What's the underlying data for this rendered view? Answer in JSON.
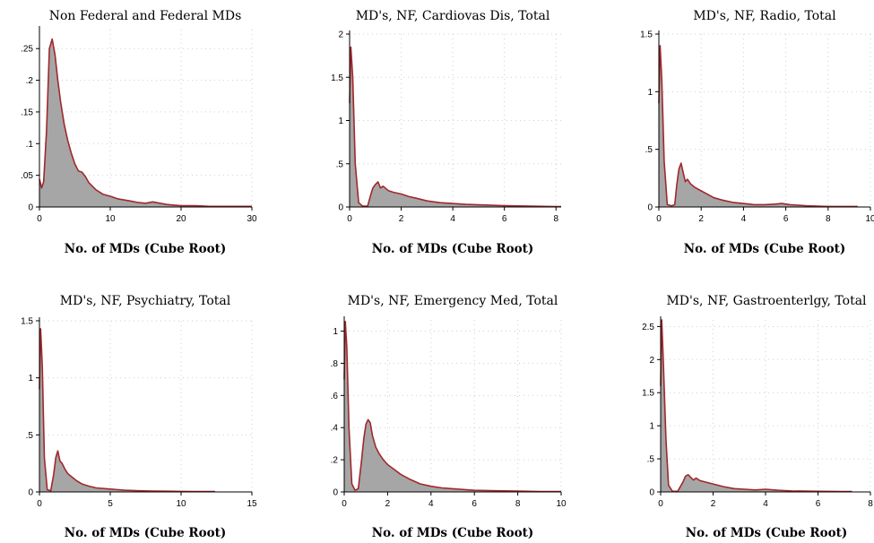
{
  "colors": {
    "fill": "#a6a6a6",
    "line": "#a0282c",
    "grid": "#cfcfcf"
  },
  "chart_data": [
    {
      "type": "area",
      "title": "Non Federal and Federal MDs",
      "xlabel": "No. of MDs (Cube Root)",
      "ylabel": "",
      "xlim": [
        0,
        30
      ],
      "ylim": [
        0,
        0.28
      ],
      "xticks": [
        0,
        10,
        20,
        30
      ],
      "xtick_labels": [
        "0",
        "10",
        "20",
        "30"
      ],
      "yticks": [
        0,
        0.05,
        0.1,
        0.15,
        0.2,
        0.25
      ],
      "ytick_labels": [
        "0",
        ".05",
        ".1",
        ".15",
        ".2",
        ".25"
      ],
      "grid": true,
      "x": [
        0,
        0.3,
        0.6,
        1.0,
        1.4,
        1.8,
        2.2,
        2.6,
        3.0,
        3.5,
        4.0,
        4.5,
        5.0,
        5.5,
        6.0,
        6.5,
        7.0,
        8.0,
        9.0,
        10.0,
        11.0,
        12.0,
        13.0,
        14.0,
        15.0,
        16.0,
        17.0,
        18.0,
        19.0,
        20.0,
        21.0,
        22.0,
        24.0,
        26.0,
        28.0,
        30.0
      ],
      "y": [
        0.044,
        0.03,
        0.04,
        0.12,
        0.25,
        0.265,
        0.24,
        0.2,
        0.165,
        0.13,
        0.105,
        0.085,
        0.068,
        0.057,
        0.055,
        0.048,
        0.038,
        0.027,
        0.02,
        0.017,
        0.013,
        0.011,
        0.009,
        0.007,
        0.006,
        0.008,
        0.006,
        0.004,
        0.003,
        0.002,
        0.002,
        0.002,
        0.001,
        0.001,
        0.001,
        0.001
      ]
    },
    {
      "type": "area",
      "title": "MD's, NF, Cardiovas Dis, Total",
      "xlabel": "No. of MDs (Cube Root)",
      "ylabel": "",
      "xlim": [
        0,
        8.2
      ],
      "ylim": [
        0,
        2
      ],
      "xticks": [
        0,
        2,
        4,
        6,
        8
      ],
      "xtick_labels": [
        "0",
        "2",
        "4",
        "6",
        "8"
      ],
      "yticks": [
        0,
        0.5,
        1,
        1.5,
        2
      ],
      "ytick_labels": [
        "0",
        ".5",
        "1",
        "1.5",
        "2"
      ],
      "grid": true,
      "x": [
        0,
        0.05,
        0.12,
        0.22,
        0.35,
        0.5,
        0.7,
        0.8,
        0.9,
        1.0,
        1.1,
        1.2,
        1.3,
        1.5,
        1.7,
        2.0,
        2.3,
        2.6,
        3.0,
        3.5,
        4.0,
        4.5,
        5.0,
        5.5,
        6.0,
        7.0,
        8.0,
        8.2
      ],
      "y": [
        1.2,
        1.85,
        1.5,
        0.5,
        0.05,
        0.01,
        0.01,
        0.12,
        0.22,
        0.26,
        0.29,
        0.22,
        0.24,
        0.19,
        0.17,
        0.15,
        0.12,
        0.1,
        0.07,
        0.05,
        0.04,
        0.03,
        0.025,
        0.02,
        0.015,
        0.01,
        0.005,
        0.005
      ]
    },
    {
      "type": "area",
      "title": "MD's, NF, Radio, Total",
      "xlabel": "No. of MDs (Cube Root)",
      "ylabel": "",
      "xlim": [
        0,
        10
      ],
      "ylim": [
        0,
        1.5
      ],
      "xticks": [
        0,
        2,
        4,
        6,
        8,
        10
      ],
      "xtick_labels": [
        "0",
        "2",
        "4",
        "6",
        "8",
        "10"
      ],
      "yticks": [
        0,
        0.5,
        1,
        1.5
      ],
      "ytick_labels": [
        "0",
        ".5",
        "1",
        "1.5"
      ],
      "grid": true,
      "x": [
        0,
        0.06,
        0.14,
        0.25,
        0.4,
        0.6,
        0.75,
        0.85,
        0.95,
        1.05,
        1.15,
        1.25,
        1.35,
        1.5,
        1.7,
        2.0,
        2.3,
        2.6,
        3.0,
        3.5,
        4.0,
        4.5,
        5.0,
        5.5,
        5.8,
        6.2,
        7.0,
        8.0,
        9.0,
        9.4
      ],
      "y": [
        0.9,
        1.4,
        1.1,
        0.4,
        0.02,
        0.01,
        0.02,
        0.2,
        0.33,
        0.38,
        0.3,
        0.22,
        0.24,
        0.2,
        0.17,
        0.14,
        0.11,
        0.08,
        0.06,
        0.04,
        0.03,
        0.02,
        0.02,
        0.025,
        0.03,
        0.02,
        0.01,
        0.005,
        0.005,
        0.005
      ]
    },
    {
      "type": "area",
      "title": "MD's, NF, Psychiatry, Total",
      "xlabel": "No. of MDs (Cube Root)",
      "ylabel": "",
      "xlim": [
        0,
        15
      ],
      "ylim": [
        0,
        1.5
      ],
      "xticks": [
        0,
        5,
        10,
        15
      ],
      "xtick_labels": [
        "0",
        "5",
        "10",
        "15"
      ],
      "yticks": [
        0,
        0.5,
        1,
        1.5
      ],
      "ytick_labels": [
        "0",
        ".5",
        "1",
        "1.5"
      ],
      "grid": true,
      "x": [
        0,
        0.08,
        0.2,
        0.35,
        0.55,
        0.8,
        1.0,
        1.15,
        1.3,
        1.45,
        1.6,
        1.8,
        2.0,
        2.3,
        2.6,
        3.0,
        3.5,
        4.0,
        5.0,
        6.0,
        7.0,
        8.0,
        9.0,
        10.0,
        11.0,
        12.4
      ],
      "y": [
        0.9,
        1.43,
        1.1,
        0.3,
        0.02,
        0.01,
        0.15,
        0.3,
        0.36,
        0.27,
        0.25,
        0.2,
        0.16,
        0.13,
        0.1,
        0.07,
        0.05,
        0.035,
        0.025,
        0.015,
        0.01,
        0.008,
        0.006,
        0.005,
        0.004,
        0.003
      ]
    },
    {
      "type": "area",
      "title": "MD's, NF, Emergency Med, Total",
      "xlabel": "No. of MDs (Cube Root)",
      "ylabel": "",
      "xlim": [
        0,
        10
      ],
      "ylim": [
        0,
        1.07
      ],
      "xticks": [
        0,
        2,
        4,
        6,
        8,
        10
      ],
      "xtick_labels": [
        "0",
        "2",
        "4",
        "6",
        "8",
        "10"
      ],
      "yticks": [
        0,
        0.2,
        0.4,
        0.6,
        0.8,
        1
      ],
      "ytick_labels": [
        "0",
        ".2",
        ".4",
        ".6",
        ".8",
        "1"
      ],
      "grid": true,
      "x": [
        0,
        0.05,
        0.12,
        0.22,
        0.35,
        0.5,
        0.65,
        0.8,
        0.9,
        1.0,
        1.1,
        1.2,
        1.3,
        1.45,
        1.6,
        1.8,
        2.0,
        2.3,
        2.6,
        3.0,
        3.5,
        4.0,
        4.5,
        5.0,
        5.5,
        6.0,
        7.0,
        8.0,
        9.0,
        10.0
      ],
      "y": [
        0.7,
        1.06,
        0.9,
        0.4,
        0.05,
        0.01,
        0.02,
        0.2,
        0.33,
        0.42,
        0.45,
        0.43,
        0.35,
        0.28,
        0.24,
        0.2,
        0.17,
        0.14,
        0.11,
        0.08,
        0.05,
        0.035,
        0.025,
        0.02,
        0.015,
        0.01,
        0.007,
        0.005,
        0.003,
        0.003
      ]
    },
    {
      "type": "area",
      "title": "MD's, NF, Gastroenterlgy, Total",
      "xlabel": "No. of MDs (Cube Root)",
      "ylabel": "",
      "xlim": [
        0,
        8
      ],
      "ylim": [
        0,
        2.6
      ],
      "xticks": [
        0,
        2,
        4,
        6,
        8
      ],
      "xtick_labels": [
        "0",
        "2",
        "4",
        "6",
        "8"
      ],
      "yticks": [
        0,
        0.5,
        1,
        1.5,
        2,
        2.5
      ],
      "ytick_labels": [
        "0",
        ".5",
        "1",
        "1.5",
        "2",
        "2.5"
      ],
      "grid": true,
      "x": [
        0,
        0.04,
        0.1,
        0.2,
        0.3,
        0.45,
        0.65,
        0.85,
        0.95,
        1.05,
        1.15,
        1.25,
        1.35,
        1.5,
        1.7,
        2.0,
        2.4,
        2.8,
        3.2,
        3.6,
        4.0,
        4.5,
        5.0,
        6.0,
        7.0,
        7.3
      ],
      "y": [
        1.6,
        2.6,
        2.0,
        0.8,
        0.1,
        0.01,
        0.01,
        0.15,
        0.24,
        0.26,
        0.22,
        0.18,
        0.21,
        0.17,
        0.15,
        0.12,
        0.08,
        0.05,
        0.04,
        0.03,
        0.04,
        0.025,
        0.015,
        0.01,
        0.005,
        0.005
      ]
    }
  ]
}
